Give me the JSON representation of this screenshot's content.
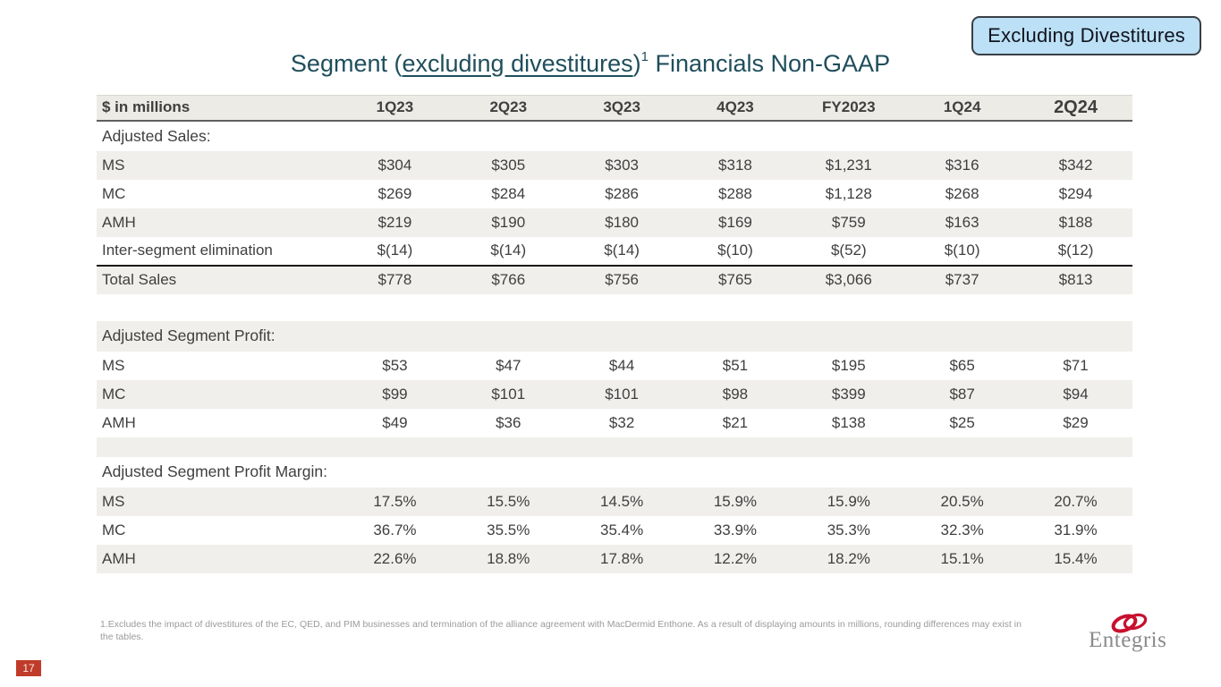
{
  "callout": {
    "label": "Excluding Divestitures"
  },
  "title": {
    "prefix": "Segment (",
    "underlined": "excluding divestitures",
    "close_paren": ")",
    "superscript": "1",
    "suffix": " Financials Non-GAAP"
  },
  "table": {
    "columns": [
      "$ in millions",
      "1Q23",
      "2Q23",
      "3Q23",
      "4Q23",
      "FY2023",
      "1Q24",
      "2Q24"
    ],
    "rows": [
      {
        "type": "section",
        "label": "Adjusted Sales:",
        "shade": false,
        "values": [
          "",
          "",
          "",
          "",
          "",
          "",
          ""
        ]
      },
      {
        "type": "data",
        "label": "MS",
        "shade": true,
        "values": [
          "$304",
          "$305",
          "$303",
          "$318",
          "$1,231",
          "$316",
          "$342"
        ]
      },
      {
        "type": "data",
        "label": "MC",
        "shade": false,
        "values": [
          "$269",
          "$284",
          "$286",
          "$288",
          "$1,128",
          "$268",
          "$294"
        ]
      },
      {
        "type": "data",
        "label": "AMH",
        "shade": true,
        "values": [
          "$219",
          "$190",
          "$180",
          "$169",
          "$759",
          "$163",
          "$188"
        ]
      },
      {
        "type": "data",
        "label": "Inter-segment elimination",
        "shade": false,
        "values": [
          "$(14)",
          "$(14)",
          "$(14)",
          "$(10)",
          "$(52)",
          "$(10)",
          "$(12)"
        ]
      },
      {
        "type": "data",
        "label": "Total Sales",
        "shade": true,
        "top_border": true,
        "values": [
          "$778",
          "$766",
          "$756",
          "$765",
          "$3,066",
          "$737",
          "$813"
        ]
      },
      {
        "type": "blank",
        "label": "",
        "shade": false,
        "values": [
          "",
          "",
          "",
          "",
          "",
          "",
          ""
        ]
      },
      {
        "type": "section",
        "label": "Adjusted Segment Profit:",
        "shade": true,
        "values": [
          "",
          "",
          "",
          "",
          "",
          "",
          ""
        ]
      },
      {
        "type": "data",
        "label": "MS",
        "shade": false,
        "values": [
          "$53",
          "$47",
          "$44",
          "$51",
          "$195",
          "$65",
          "$71"
        ]
      },
      {
        "type": "data",
        "label": "MC",
        "shade": true,
        "values": [
          "$99",
          "$101",
          "$101",
          "$98",
          "$399",
          "$87",
          "$94"
        ]
      },
      {
        "type": "data",
        "label": "AMH",
        "shade": false,
        "values": [
          "$49",
          "$36",
          "$32",
          "$21",
          "$138",
          "$25",
          "$29"
        ]
      },
      {
        "type": "blank",
        "label": "",
        "shade": true,
        "thin": true,
        "values": [
          "",
          "",
          "",
          "",
          "",
          "",
          ""
        ]
      },
      {
        "type": "section",
        "label": "Adjusted Segment Profit Margin:",
        "shade": false,
        "values": [
          "",
          "",
          "",
          "",
          "",
          "",
          ""
        ]
      },
      {
        "type": "data",
        "label": "MS",
        "shade": true,
        "values": [
          "17.5%",
          "15.5%",
          "14.5%",
          "15.9%",
          "15.9%",
          "20.5%",
          "20.7%"
        ]
      },
      {
        "type": "data",
        "label": "MC",
        "shade": false,
        "values": [
          "36.7%",
          "35.5%",
          "35.4%",
          "33.9%",
          "35.3%",
          "32.3%",
          "31.9%"
        ]
      },
      {
        "type": "data",
        "label": "AMH",
        "shade": true,
        "values": [
          "22.6%",
          "18.8%",
          "17.8%",
          "12.2%",
          "18.2%",
          "15.1%",
          "15.4%"
        ]
      }
    ]
  },
  "footnote": "1.Excludes the impact of divestitures of the EC, QED, and PIM businesses and termination of the alliance agreement with MacDermid Enthone. As a result of displaying amounts in millions, rounding differences may exist in the tables.",
  "page_number": "17",
  "logo": {
    "text": "Entegris"
  },
  "colors": {
    "title_teal": "#1f4e5c",
    "callout_fill": "#bce0f5",
    "callout_border": "#3a3f45",
    "band_gray": "#f1efec",
    "header_band": "#ecebe6",
    "body_text": "#3f3f3f",
    "footnote_gray": "#9b9b9b",
    "page_red": "#c13b2a",
    "logo_red": "#c8102e",
    "logo_gray": "#8a8a8a"
  }
}
